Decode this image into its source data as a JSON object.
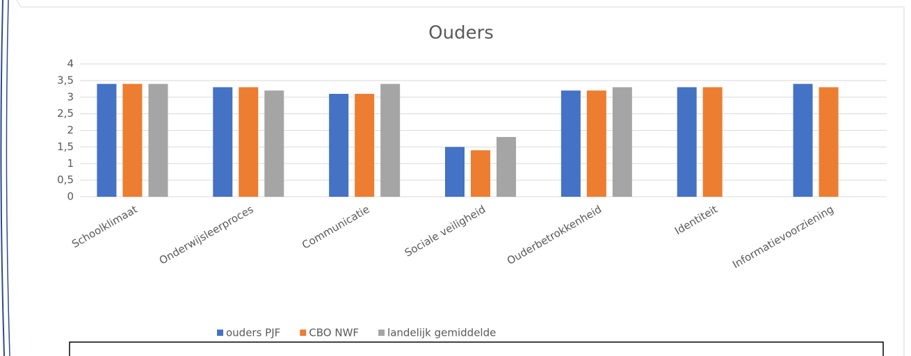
{
  "chart_data": {
    "type": "bar",
    "title": "Ouders",
    "categories": [
      "Schoolklimaat",
      "Onderwijsleerproces",
      "Communicatie",
      "Sociale veiligheid",
      "Ouderbetrokkenheid",
      "Identiteit",
      "Informatievoorziening"
    ],
    "series": [
      {
        "name": "ouders PJF",
        "color": "#4472c4",
        "values": [
          3.4,
          3.3,
          3.1,
          1.5,
          3.2,
          3.3,
          3.4
        ]
      },
      {
        "name": "CBO NWF",
        "color": "#ed7d31",
        "values": [
          3.4,
          3.3,
          3.1,
          1.4,
          3.2,
          3.3,
          3.3
        ]
      },
      {
        "name": "landelijk gemiddelde",
        "color": "#a5a5a5",
        "values": [
          3.4,
          3.2,
          3.4,
          1.8,
          3.3,
          null,
          null
        ]
      }
    ],
    "ylim": [
      0,
      4
    ],
    "yticks": [
      0,
      {
        "value": 0.5,
        "label": "0,5"
      },
      1,
      {
        "value": 1.5,
        "label": "1,5"
      },
      2,
      {
        "value": 2.5,
        "label": "2,5"
      },
      3,
      {
        "value": 3.5,
        "label": "3,5"
      },
      4
    ],
    "grid": true,
    "legend": "bottom"
  }
}
